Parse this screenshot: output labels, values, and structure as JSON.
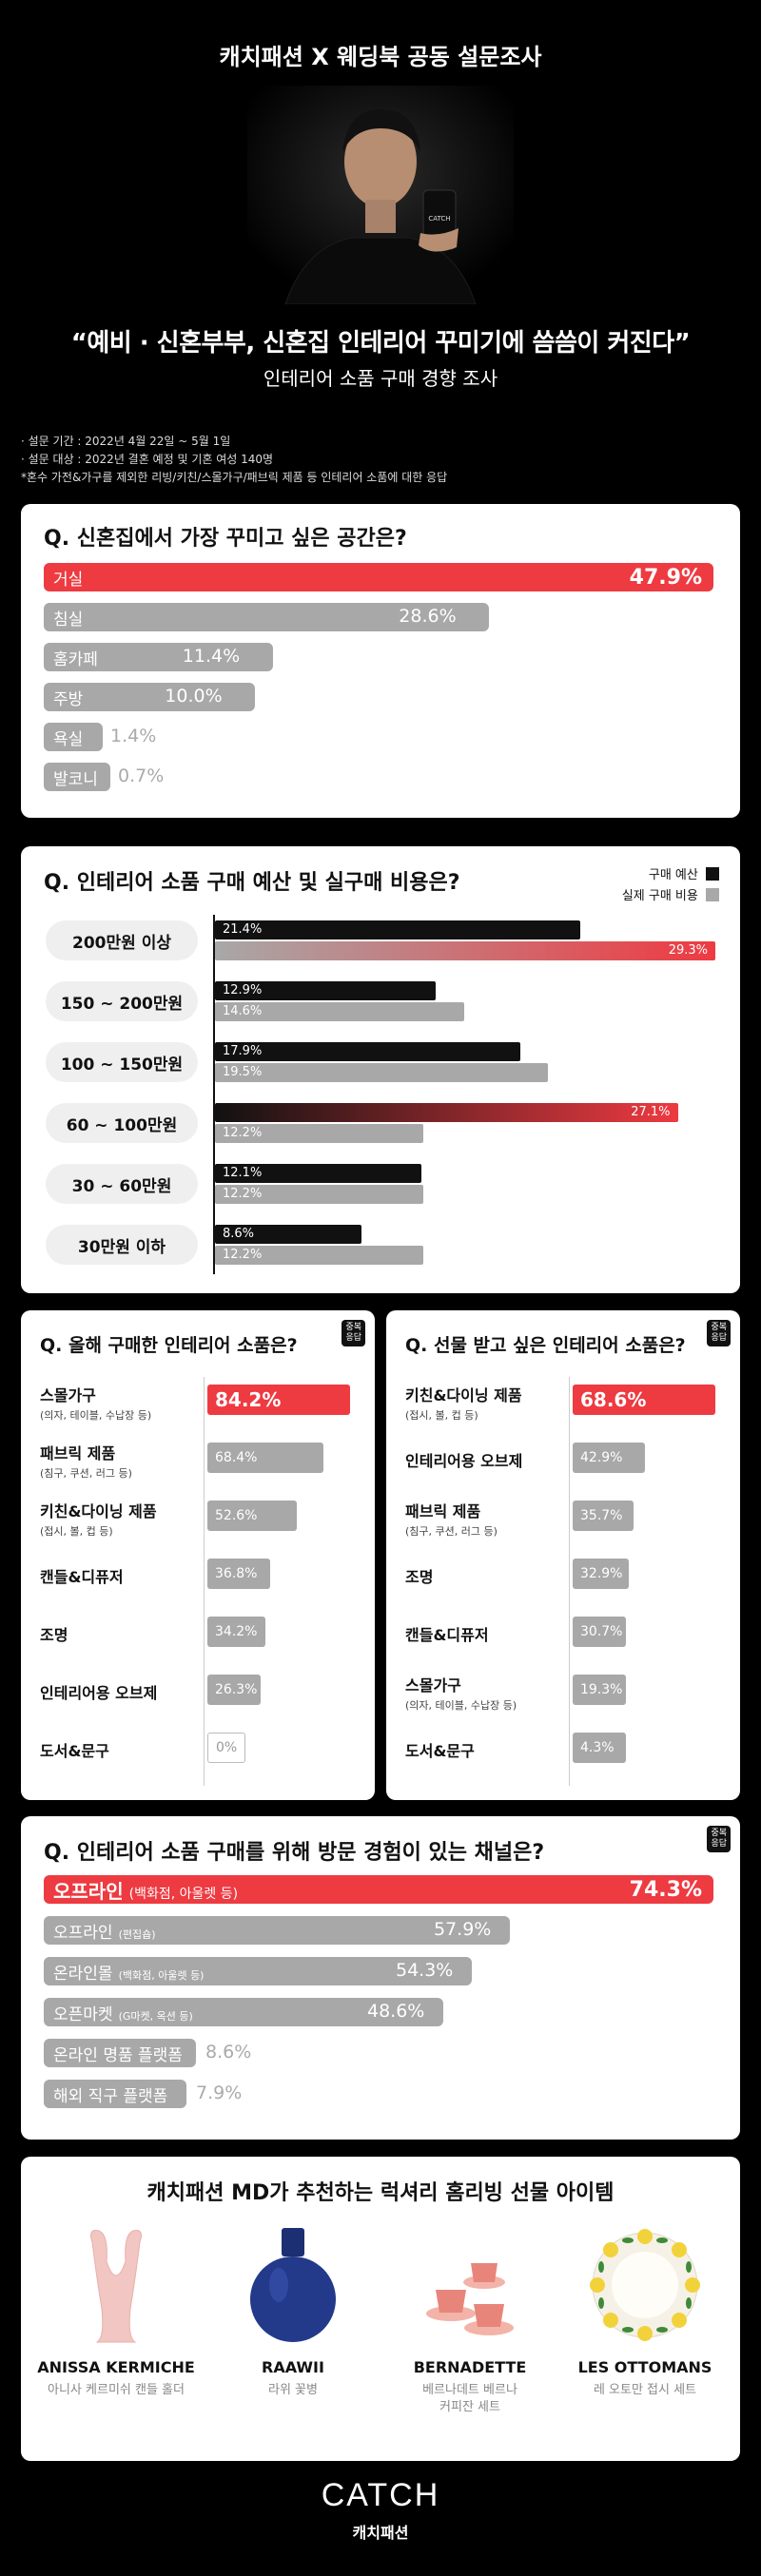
{
  "header": {
    "title": "캐치패션 X 웨딩북 공동 설문조사",
    "headline": "“예비 · 신혼부부, 신혼집 인테리어 꾸미기에 씀씀이 커진다”",
    "subheadline": "인테리어 소품 구매 경향 조사",
    "notes": [
      "· 설문 기간 : 2022년 4월 22일 ~ 5월 1일",
      "· 설문 대상 : 2022년 결혼 예정 및 기혼 여성 140명",
      "*혼수 가전&가구를 제외한 리빙/키친/스몰가구/패브릭 제품 등 인테리어 소품에 대한 응답"
    ]
  },
  "q1": {
    "question": "Q. 신혼집에서 가장 꾸미고 싶은 공간은?",
    "items": [
      {
        "label": "거실",
        "value": "47.9%",
        "pct": 47.9
      },
      {
        "label": "침실",
        "value": "28.6%",
        "pct": 28.6
      },
      {
        "label": "홈카페",
        "value": "11.4%",
        "pct": 11.4
      },
      {
        "label": "주방",
        "value": "10.0%",
        "pct": 10.0
      },
      {
        "label": "욕실",
        "value": "1.4%",
        "pct": 1.4
      },
      {
        "label": "발코니",
        "value": "0.7%",
        "pct": 0.7
      }
    ]
  },
  "q2": {
    "question": "Q. 인테리어 소품 구매 예산 및 실구매 비용은?",
    "legend": [
      "구매 예산",
      "실제 구매 비용"
    ],
    "chart_data": {
      "type": "bar",
      "categories": [
        "200만원 이상",
        "150 ~ 200만원",
        "100 ~ 150만원",
        "60 ~ 100만원",
        "30 ~ 60만원",
        "30만원 이하"
      ],
      "series": [
        {
          "name": "구매 예산",
          "values": [
            21.4,
            12.9,
            17.9,
            27.1,
            12.1,
            8.6
          ],
          "labels": [
            "21.4%",
            "12.9%",
            "17.9%",
            "27.1%",
            "12.1%",
            "8.6%"
          ]
        },
        {
          "name": "실제 구매 비용",
          "values": [
            29.3,
            14.6,
            19.5,
            12.2,
            12.2,
            12.2
          ],
          "labels": [
            "29.3%",
            "14.6%",
            "19.5%",
            "12.2%",
            "12.2%",
            "12.2%"
          ]
        }
      ]
    }
  },
  "q3": {
    "question": "Q. 올해 구매한 인테리어 소품은?",
    "badge": "중복\n응답",
    "items": [
      {
        "label": "스몰가구",
        "sub": "(의자, 테이블, 수납장 등)",
        "value": "84.2%",
        "pct": 84.2
      },
      {
        "label": "패브릭 제품",
        "sub": "(침구, 쿠션, 러그 등)",
        "value": "68.4%",
        "pct": 68.4
      },
      {
        "label": "키친&다이닝 제품",
        "sub": "(접시, 볼, 컵 등)",
        "value": "52.6%",
        "pct": 52.6
      },
      {
        "label": "캔들&디퓨저",
        "sub": "",
        "value": "36.8%",
        "pct": 36.8
      },
      {
        "label": "조명",
        "sub": "",
        "value": "34.2%",
        "pct": 34.2
      },
      {
        "label": "인테리어용 오브제",
        "sub": "",
        "value": "26.3%",
        "pct": 26.3
      },
      {
        "label": "도서&문구",
        "sub": "",
        "value": "0%",
        "pct": 0
      }
    ]
  },
  "q4": {
    "question": "Q. 선물 받고 싶은 인테리어 소품은?",
    "badge": "중복\n응답",
    "items": [
      {
        "label": "키친&다이닝 제품",
        "sub": "(접시, 볼, 컵 등)",
        "value": "68.6%",
        "pct": 68.6
      },
      {
        "label": "인테리어용 오브제",
        "sub": "",
        "value": "42.9%",
        "pct": 42.9
      },
      {
        "label": "패브릭 제품",
        "sub": "(침구, 쿠션, 러그 등)",
        "value": "35.7%",
        "pct": 35.7
      },
      {
        "label": "조명",
        "sub": "",
        "value": "32.9%",
        "pct": 32.9
      },
      {
        "label": "캔들&디퓨저",
        "sub": "",
        "value": "30.7%",
        "pct": 30.7
      },
      {
        "label": "스몰가구",
        "sub": "(의자, 테이블, 수납장 등)",
        "value": "19.3%",
        "pct": 19.3
      },
      {
        "label": "도서&문구",
        "sub": "",
        "value": "4.3%",
        "pct": 4.3
      }
    ]
  },
  "q5": {
    "question": "Q. 인테리어 소품 구매를 위해 방문 경험이 있는 채널은?",
    "badge": "중복\n응답",
    "items": [
      {
        "label": "오프라인",
        "sub": "(백화점, 아울렛 등)",
        "value": "74.3%",
        "pct": 74.3
      },
      {
        "label": "오프라인",
        "sub": "(편집숍)",
        "value": "57.9%",
        "pct": 57.9
      },
      {
        "label": "온라인몰",
        "sub": "(백화점, 아울렛 등)",
        "value": "54.3%",
        "pct": 54.3
      },
      {
        "label": "오픈마켓",
        "sub": "(G마켓, 옥션 등)",
        "value": "48.6%",
        "pct": 48.6
      },
      {
        "label": "온라인 명품 플랫폼",
        "sub": "",
        "value": "8.6%",
        "pct": 8.6
      },
      {
        "label": "해외 직구 플랫폼",
        "sub": "",
        "value": "7.9%",
        "pct": 7.9
      }
    ]
  },
  "recommend": {
    "title": "캐치패션 MD가 추천하는 럭셔리 홈리빙 선물 아이템",
    "products": [
      {
        "name": "ANISSA KERMICHE",
        "desc": "아니사 케르미쉬 캔들 홀더"
      },
      {
        "name": "RAAWII",
        "desc": "라위 꽃병"
      },
      {
        "name": "BERNADETTE",
        "desc": "베르나데트 베르나\n커피잔 세트"
      },
      {
        "name": "LES OTTOMANS",
        "desc": "레 오토만 접시 세트"
      }
    ]
  },
  "footer": {
    "logo": "CATCH",
    "name": "캐치패션"
  },
  "colors": {
    "accent": "#ee3a41",
    "gray": "#a8a8a8",
    "black": "#111111"
  }
}
